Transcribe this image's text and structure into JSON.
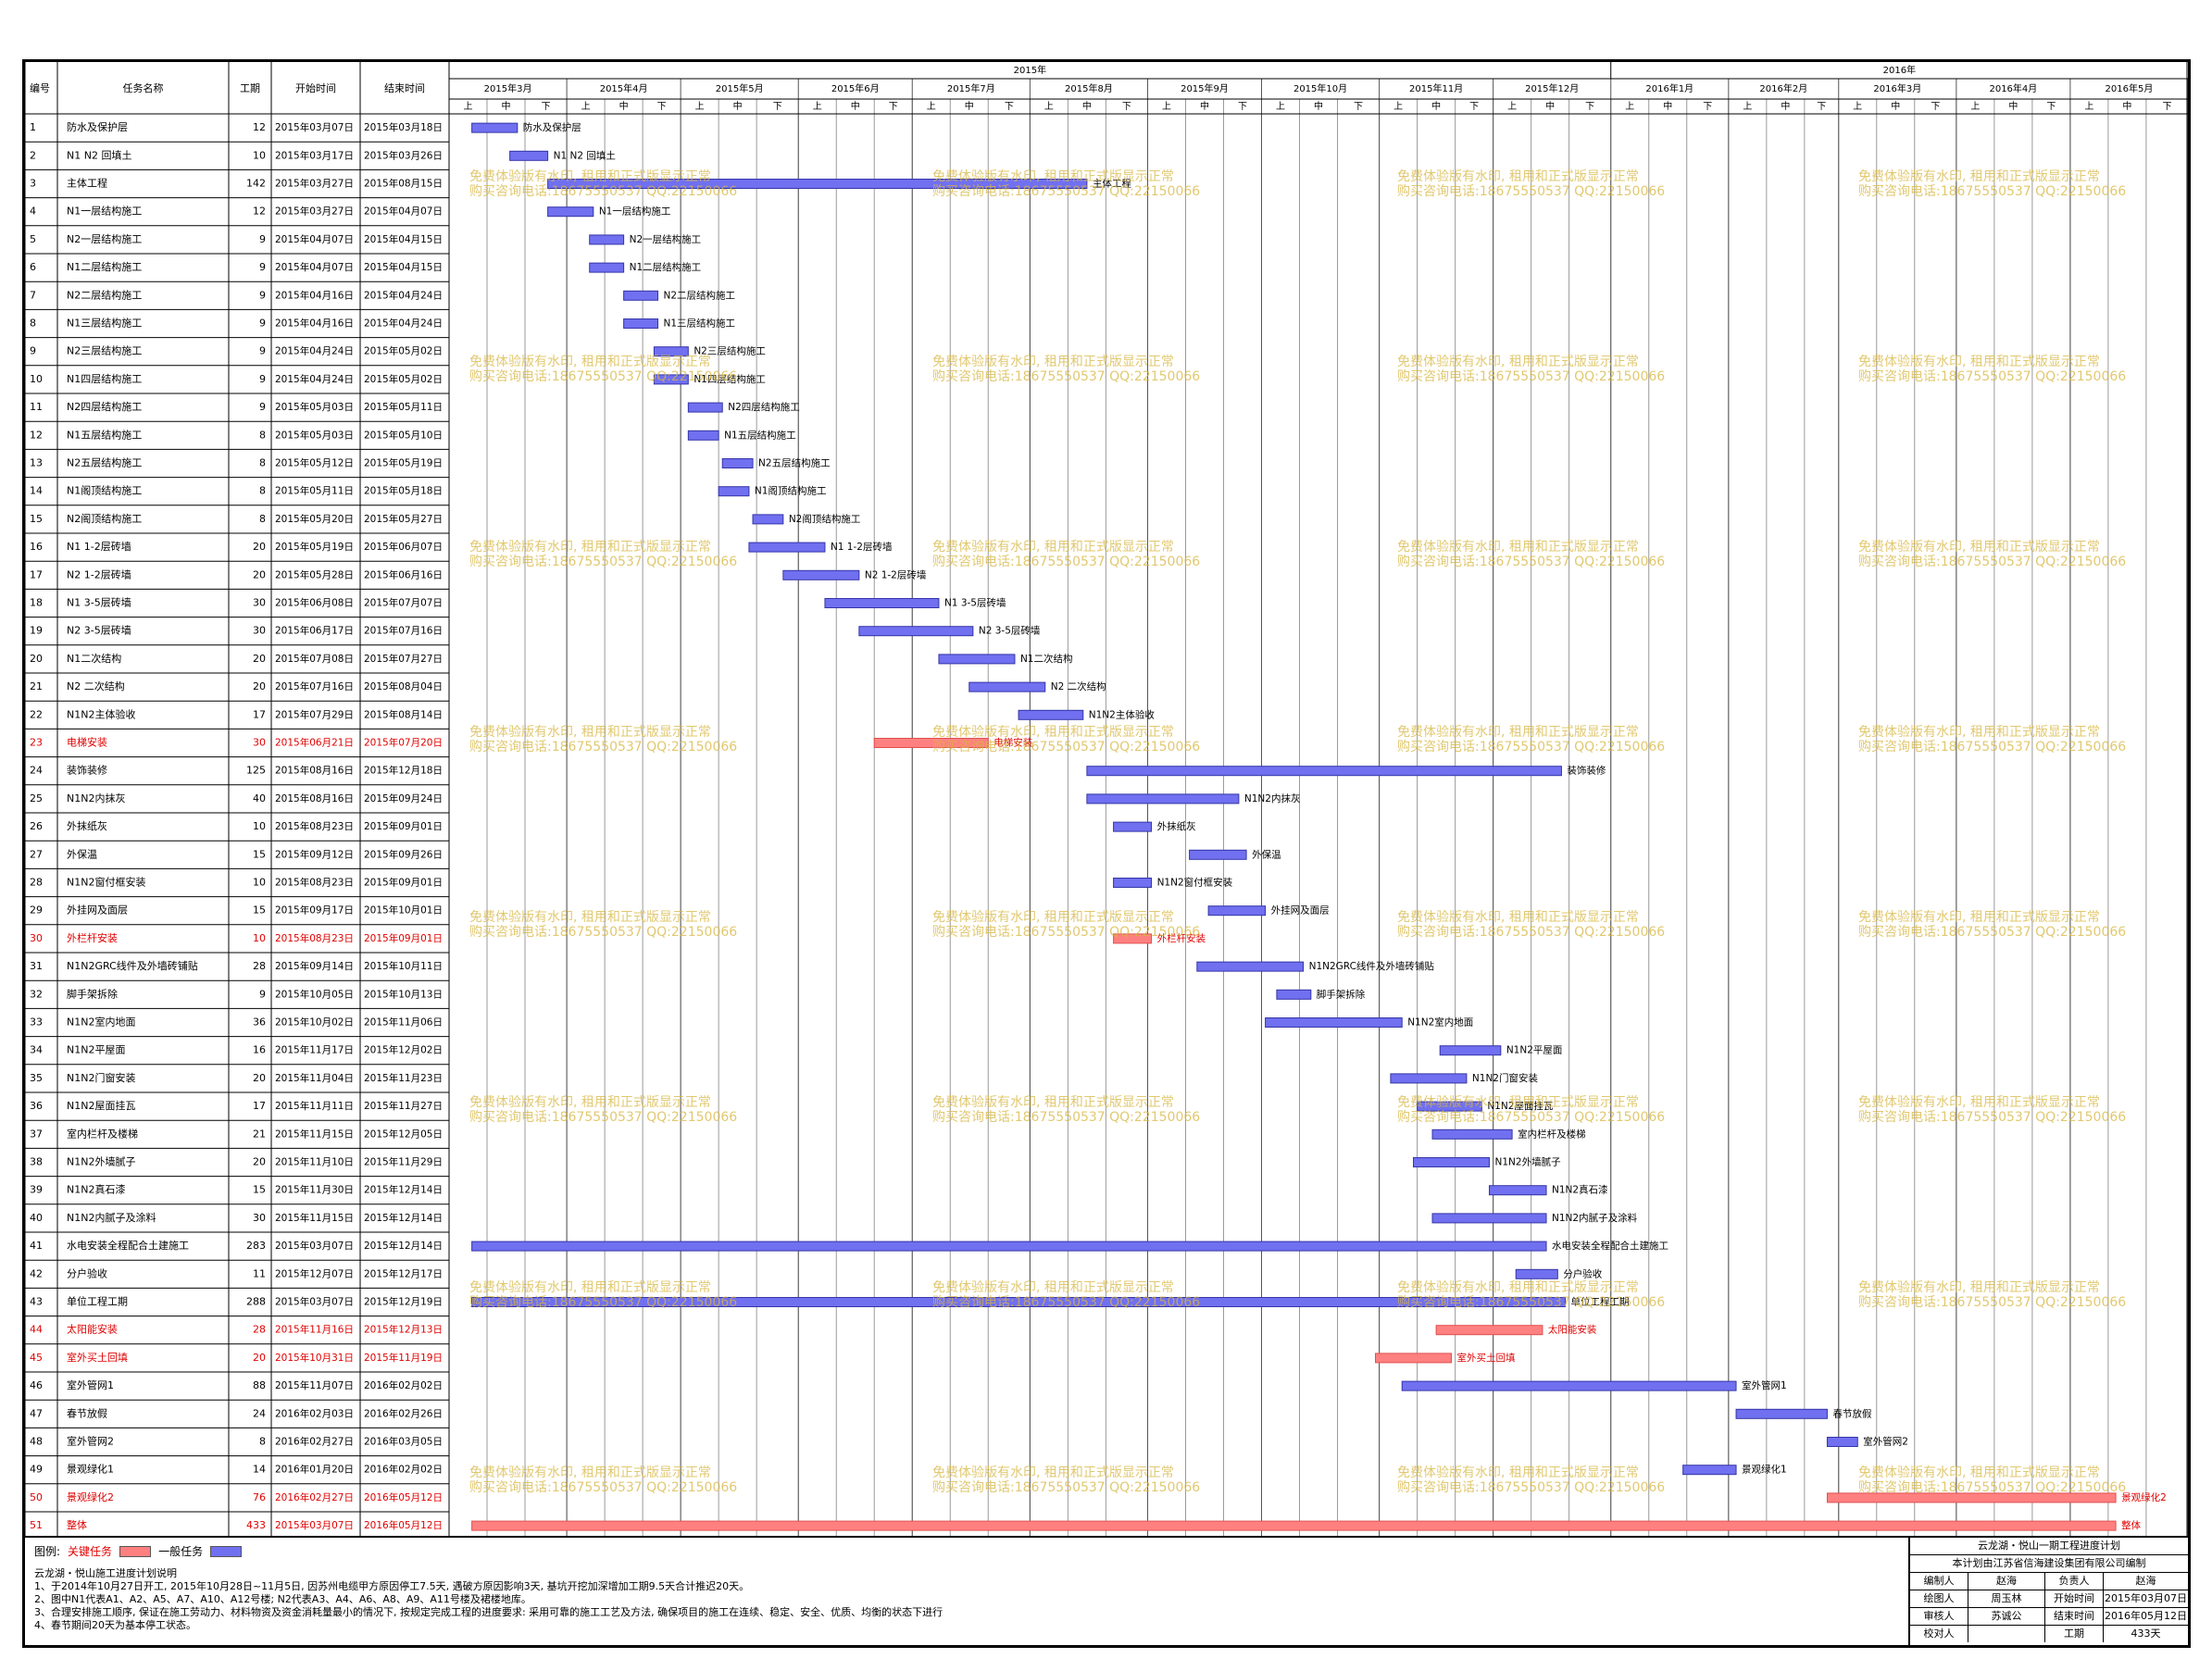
{
  "columns": {
    "id": "编号",
    "name": "任务名称",
    "dur": "工期",
    "start": "开始时间",
    "end": "结束时间"
  },
  "years": [
    {
      "label": "2015年"
    },
    {
      "label": "2016年"
    }
  ],
  "months": [
    "2015年3月",
    "2015年4月",
    "2015年5月",
    "2015年6月",
    "2015年7月",
    "2015年8月",
    "2015年9月",
    "2015年10月",
    "2015年11月",
    "2015年12月",
    "2016年1月",
    "2016年2月",
    "2016年3月",
    "2016年4月",
    "2016年5月"
  ],
  "dekads": [
    "上",
    "中",
    "下"
  ],
  "legend": {
    "label": "图例:",
    "critical": "关键任务",
    "normal": "一般任务",
    "critical_color": "#ff8080",
    "normal_color": "#7070f0"
  },
  "notes": {
    "title": "云龙湖・悦山施工进度计划说明",
    "lines": [
      "1、于2014年10月27日开工, 2015年10月28日~11月5日, 因苏州电缆甲方原因停工7.5天, 遇破方原因影响3天, 基坑开挖加深增加工期9.5天合计推迟20天。",
      "2、图中N1代表A1、A2、A5、A7、A10、A12号楼; N2代表A3、A4、A6、A8、A9、A11号楼及裙楼地库。",
      "3、合理安排施工顺序, 保证在施工劳动力、材料物资及资金消耗量最小的情况下, 按规定完成工程的进度要求: 采用可靠的施工工艺及方法, 确保项目的施工在连续、稳定、安全、优质、均衡的状态下进行",
      "4、春节期间20天为基本停工状态。"
    ]
  },
  "watermark": {
    "line1": "免费体验版有水印, 租用和正式版显示正常",
    "line2": "购买咨询电话:18675550537 QQ:22150066"
  },
  "info": {
    "title": "云龙湖・悦山一期工程进度计划",
    "company": "本计划由江苏省信海建设集团有限公司编制",
    "rows": [
      [
        "编制人",
        "赵海",
        "负责人",
        "赵海"
      ],
      [
        "绘图人",
        "周玉林",
        "开始时间",
        "2015年03月07日"
      ],
      [
        "审核人",
        "苏诚公",
        "结束时间",
        "2016年05月12日"
      ],
      [
        "校对人",
        "",
        "工期",
        "433天"
      ]
    ]
  },
  "chart_data": {
    "type": "gantt",
    "x_range": [
      "2015-03-01",
      "2016-05-31"
    ],
    "tasks": [
      {
        "id": "1",
        "name": "防水及保护层",
        "dur": "12",
        "start": "2015年03月07日",
        "end": "2015年03月18日",
        "s": "2015-03-07",
        "e": "2015-03-18",
        "critical": false
      },
      {
        "id": "2",
        "name": "N1 N2 回填土",
        "dur": "10",
        "start": "2015年03月17日",
        "end": "2015年03月26日",
        "s": "2015-03-17",
        "e": "2015-03-26",
        "critical": false
      },
      {
        "id": "3",
        "name": "主体工程",
        "dur": "142",
        "start": "2015年03月27日",
        "end": "2015年08月15日",
        "s": "2015-03-27",
        "e": "2015-08-15",
        "critical": false
      },
      {
        "id": "4",
        "name": "N1一层结构施工",
        "dur": "12",
        "start": "2015年03月27日",
        "end": "2015年04月07日",
        "s": "2015-03-27",
        "e": "2015-04-07",
        "critical": false
      },
      {
        "id": "5",
        "name": "N2一层结构施工",
        "dur": "9",
        "start": "2015年04月07日",
        "end": "2015年04月15日",
        "s": "2015-04-07",
        "e": "2015-04-15",
        "critical": false
      },
      {
        "id": "6",
        "name": "N1二层结构施工",
        "dur": "9",
        "start": "2015年04月07日",
        "end": "2015年04月15日",
        "s": "2015-04-07",
        "e": "2015-04-15",
        "critical": false
      },
      {
        "id": "7",
        "name": "N2二层结构施工",
        "dur": "9",
        "start": "2015年04月16日",
        "end": "2015年04月24日",
        "s": "2015-04-16",
        "e": "2015-04-24",
        "critical": false
      },
      {
        "id": "8",
        "name": "N1三层结构施工",
        "dur": "9",
        "start": "2015年04月16日",
        "end": "2015年04月24日",
        "s": "2015-04-16",
        "e": "2015-04-24",
        "critical": false
      },
      {
        "id": "9",
        "name": "N2三层结构施工",
        "dur": "9",
        "start": "2015年04月24日",
        "end": "2015年05月02日",
        "s": "2015-04-24",
        "e": "2015-05-02",
        "critical": false
      },
      {
        "id": "10",
        "name": "N1四层结构施工",
        "dur": "9",
        "start": "2015年04月24日",
        "end": "2015年05月02日",
        "s": "2015-04-24",
        "e": "2015-05-02",
        "critical": false
      },
      {
        "id": "11",
        "name": "N2四层结构施工",
        "dur": "9",
        "start": "2015年05月03日",
        "end": "2015年05月11日",
        "s": "2015-05-03",
        "e": "2015-05-11",
        "critical": false
      },
      {
        "id": "12",
        "name": "N1五层结构施工",
        "dur": "8",
        "start": "2015年05月03日",
        "end": "2015年05月10日",
        "s": "2015-05-03",
        "e": "2015-05-10",
        "critical": false
      },
      {
        "id": "13",
        "name": "N2五层结构施工",
        "dur": "8",
        "start": "2015年05月12日",
        "end": "2015年05月19日",
        "s": "2015-05-12",
        "e": "2015-05-19",
        "critical": false
      },
      {
        "id": "14",
        "name": "N1阁顶结构施工",
        "dur": "8",
        "start": "2015年05月11日",
        "end": "2015年05月18日",
        "s": "2015-05-11",
        "e": "2015-05-18",
        "critical": false
      },
      {
        "id": "15",
        "name": "N2阁顶结构施工",
        "dur": "8",
        "start": "2015年05月20日",
        "end": "2015年05月27日",
        "s": "2015-05-20",
        "e": "2015-05-27",
        "critical": false
      },
      {
        "id": "16",
        "name": "N1 1-2层砖墙",
        "dur": "20",
        "start": "2015年05月19日",
        "end": "2015年06月07日",
        "s": "2015-05-19",
        "e": "2015-06-07",
        "critical": false
      },
      {
        "id": "17",
        "name": "N2 1-2层砖墙",
        "dur": "20",
        "start": "2015年05月28日",
        "end": "2015年06月16日",
        "s": "2015-05-28",
        "e": "2015-06-16",
        "critical": false
      },
      {
        "id": "18",
        "name": "N1 3-5层砖墙",
        "dur": "30",
        "start": "2015年06月08日",
        "end": "2015年07月07日",
        "s": "2015-06-08",
        "e": "2015-07-07",
        "critical": false
      },
      {
        "id": "19",
        "name": "N2 3-5层砖墙",
        "dur": "30",
        "start": "2015年06月17日",
        "end": "2015年07月16日",
        "s": "2015-06-17",
        "e": "2015-07-16",
        "critical": false
      },
      {
        "id": "20",
        "name": "N1二次结构",
        "dur": "20",
        "start": "2015年07月08日",
        "end": "2015年07月27日",
        "s": "2015-07-08",
        "e": "2015-07-27",
        "critical": false
      },
      {
        "id": "21",
        "name": "N2 二次结构",
        "dur": "20",
        "start": "2015年07月16日",
        "end": "2015年08月04日",
        "s": "2015-07-16",
        "e": "2015-08-04",
        "critical": false
      },
      {
        "id": "22",
        "name": "N1N2主体验收",
        "dur": "17",
        "start": "2015年07月29日",
        "end": "2015年08月14日",
        "s": "2015-07-29",
        "e": "2015-08-14",
        "critical": false
      },
      {
        "id": "23",
        "name": "电梯安装",
        "dur": "30",
        "start": "2015年06月21日",
        "end": "2015年07月20日",
        "s": "2015-06-21",
        "e": "2015-07-20",
        "critical": true
      },
      {
        "id": "24",
        "name": "装饰装修",
        "dur": "125",
        "start": "2015年08月16日",
        "end": "2015年12月18日",
        "s": "2015-08-16",
        "e": "2015-12-18",
        "critical": false
      },
      {
        "id": "25",
        "name": "N1N2内抹灰",
        "dur": "40",
        "start": "2015年08月16日",
        "end": "2015年09月24日",
        "s": "2015-08-16",
        "e": "2015-09-24",
        "critical": false
      },
      {
        "id": "26",
        "name": "外抹纸灰",
        "dur": "10",
        "start": "2015年08月23日",
        "end": "2015年09月01日",
        "s": "2015-08-23",
        "e": "2015-09-01",
        "critical": false
      },
      {
        "id": "27",
        "name": "外保温",
        "dur": "15",
        "start": "2015年09月12日",
        "end": "2015年09月26日",
        "s": "2015-09-12",
        "e": "2015-09-26",
        "critical": false
      },
      {
        "id": "28",
        "name": "N1N2窗付框安装",
        "dur": "10",
        "start": "2015年08月23日",
        "end": "2015年09月01日",
        "s": "2015-08-23",
        "e": "2015-09-01",
        "critical": false
      },
      {
        "id": "29",
        "name": "外挂网及面层",
        "dur": "15",
        "start": "2015年09月17日",
        "end": "2015年10月01日",
        "s": "2015-09-17",
        "e": "2015-10-01",
        "critical": false
      },
      {
        "id": "30",
        "name": "外栏杆安装",
        "dur": "10",
        "start": "2015年08月23日",
        "end": "2015年09月01日",
        "s": "2015-08-23",
        "e": "2015-09-01",
        "critical": true
      },
      {
        "id": "31",
        "name": "N1N2GRC线件及外墙砖铺贴",
        "dur": "28",
        "start": "2015年09月14日",
        "end": "2015年10月11日",
        "s": "2015-09-14",
        "e": "2015-10-11",
        "critical": false
      },
      {
        "id": "32",
        "name": "脚手架拆除",
        "dur": "9",
        "start": "2015年10月05日",
        "end": "2015年10月13日",
        "s": "2015-10-05",
        "e": "2015-10-13",
        "critical": false
      },
      {
        "id": "33",
        "name": "N1N2室内地面",
        "dur": "36",
        "start": "2015年10月02日",
        "end": "2015年11月06日",
        "s": "2015-10-02",
        "e": "2015-11-06",
        "critical": false
      },
      {
        "id": "34",
        "name": "N1N2平屋面",
        "dur": "16",
        "start": "2015年11月17日",
        "end": "2015年12月02日",
        "s": "2015-11-17",
        "e": "2015-12-02",
        "critical": false
      },
      {
        "id": "35",
        "name": "N1N2门窗安装",
        "dur": "20",
        "start": "2015年11月04日",
        "end": "2015年11月23日",
        "s": "2015-11-04",
        "e": "2015-11-23",
        "critical": false
      },
      {
        "id": "36",
        "name": "N1N2屋面挂瓦",
        "dur": "17",
        "start": "2015年11月11日",
        "end": "2015年11月27日",
        "s": "2015-11-11",
        "e": "2015-11-27",
        "critical": false
      },
      {
        "id": "37",
        "name": "室内栏杆及楼梯",
        "dur": "21",
        "start": "2015年11月15日",
        "end": "2015年12月05日",
        "s": "2015-11-15",
        "e": "2015-12-05",
        "critical": false
      },
      {
        "id": "38",
        "name": "N1N2外墙腻子",
        "dur": "20",
        "start": "2015年11月10日",
        "end": "2015年11月29日",
        "s": "2015-11-10",
        "e": "2015-11-29",
        "critical": false
      },
      {
        "id": "39",
        "name": "N1N2真石漆",
        "dur": "15",
        "start": "2015年11月30日",
        "end": "2015年12月14日",
        "s": "2015-11-30",
        "e": "2015-12-14",
        "critical": false
      },
      {
        "id": "40",
        "name": "N1N2内腻子及涂料",
        "dur": "30",
        "start": "2015年11月15日",
        "end": "2015年12月14日",
        "s": "2015-11-15",
        "e": "2015-12-14",
        "critical": false
      },
      {
        "id": "41",
        "name": "水电安装全程配合土建施工",
        "dur": "283",
        "start": "2015年03月07日",
        "end": "2015年12月14日",
        "s": "2015-03-07",
        "e": "2015-12-14",
        "critical": false
      },
      {
        "id": "42",
        "name": "分户验收",
        "dur": "11",
        "start": "2015年12月07日",
        "end": "2015年12月17日",
        "s": "2015-12-07",
        "e": "2015-12-17",
        "critical": false
      },
      {
        "id": "43",
        "name": "单位工程工期",
        "dur": "288",
        "start": "2015年03月07日",
        "end": "2015年12月19日",
        "s": "2015-03-07",
        "e": "2015-12-19",
        "critical": false
      },
      {
        "id": "44",
        "name": "太阳能安装",
        "dur": "28",
        "start": "2015年11月16日",
        "end": "2015年12月13日",
        "s": "2015-11-16",
        "e": "2015-12-13",
        "critical": true
      },
      {
        "id": "45",
        "name": "室外买土回填",
        "dur": "20",
        "start": "2015年10月31日",
        "end": "2015年11月19日",
        "s": "2015-10-31",
        "e": "2015-11-19",
        "critical": true
      },
      {
        "id": "46",
        "name": "室外管网1",
        "dur": "88",
        "start": "2015年11月07日",
        "end": "2016年02月02日",
        "s": "2015-11-07",
        "e": "2016-02-02",
        "critical": false
      },
      {
        "id": "47",
        "name": "春节放假",
        "dur": "24",
        "start": "2016年02月03日",
        "end": "2016年02月26日",
        "s": "2016-02-03",
        "e": "2016-02-26",
        "critical": false
      },
      {
        "id": "48",
        "name": "室外管网2",
        "dur": "8",
        "start": "2016年02月27日",
        "end": "2016年03月05日",
        "s": "2016-02-27",
        "e": "2016-03-05",
        "critical": false
      },
      {
        "id": "49",
        "name": "景观绿化1",
        "dur": "14",
        "start": "2016年01月20日",
        "end": "2016年02月02日",
        "s": "2016-01-20",
        "e": "2016-02-02",
        "critical": false
      },
      {
        "id": "50",
        "name": "景观绿化2",
        "dur": "76",
        "start": "2016年02月27日",
        "end": "2016年05月12日",
        "s": "2016-02-27",
        "e": "2016-05-12",
        "critical": true
      },
      {
        "id": "51",
        "name": "整体",
        "dur": "433",
        "start": "2015年03月07日",
        "end": "2016年05月12日",
        "s": "2015-03-07",
        "e": "2016-05-12",
        "critical": true
      }
    ]
  }
}
